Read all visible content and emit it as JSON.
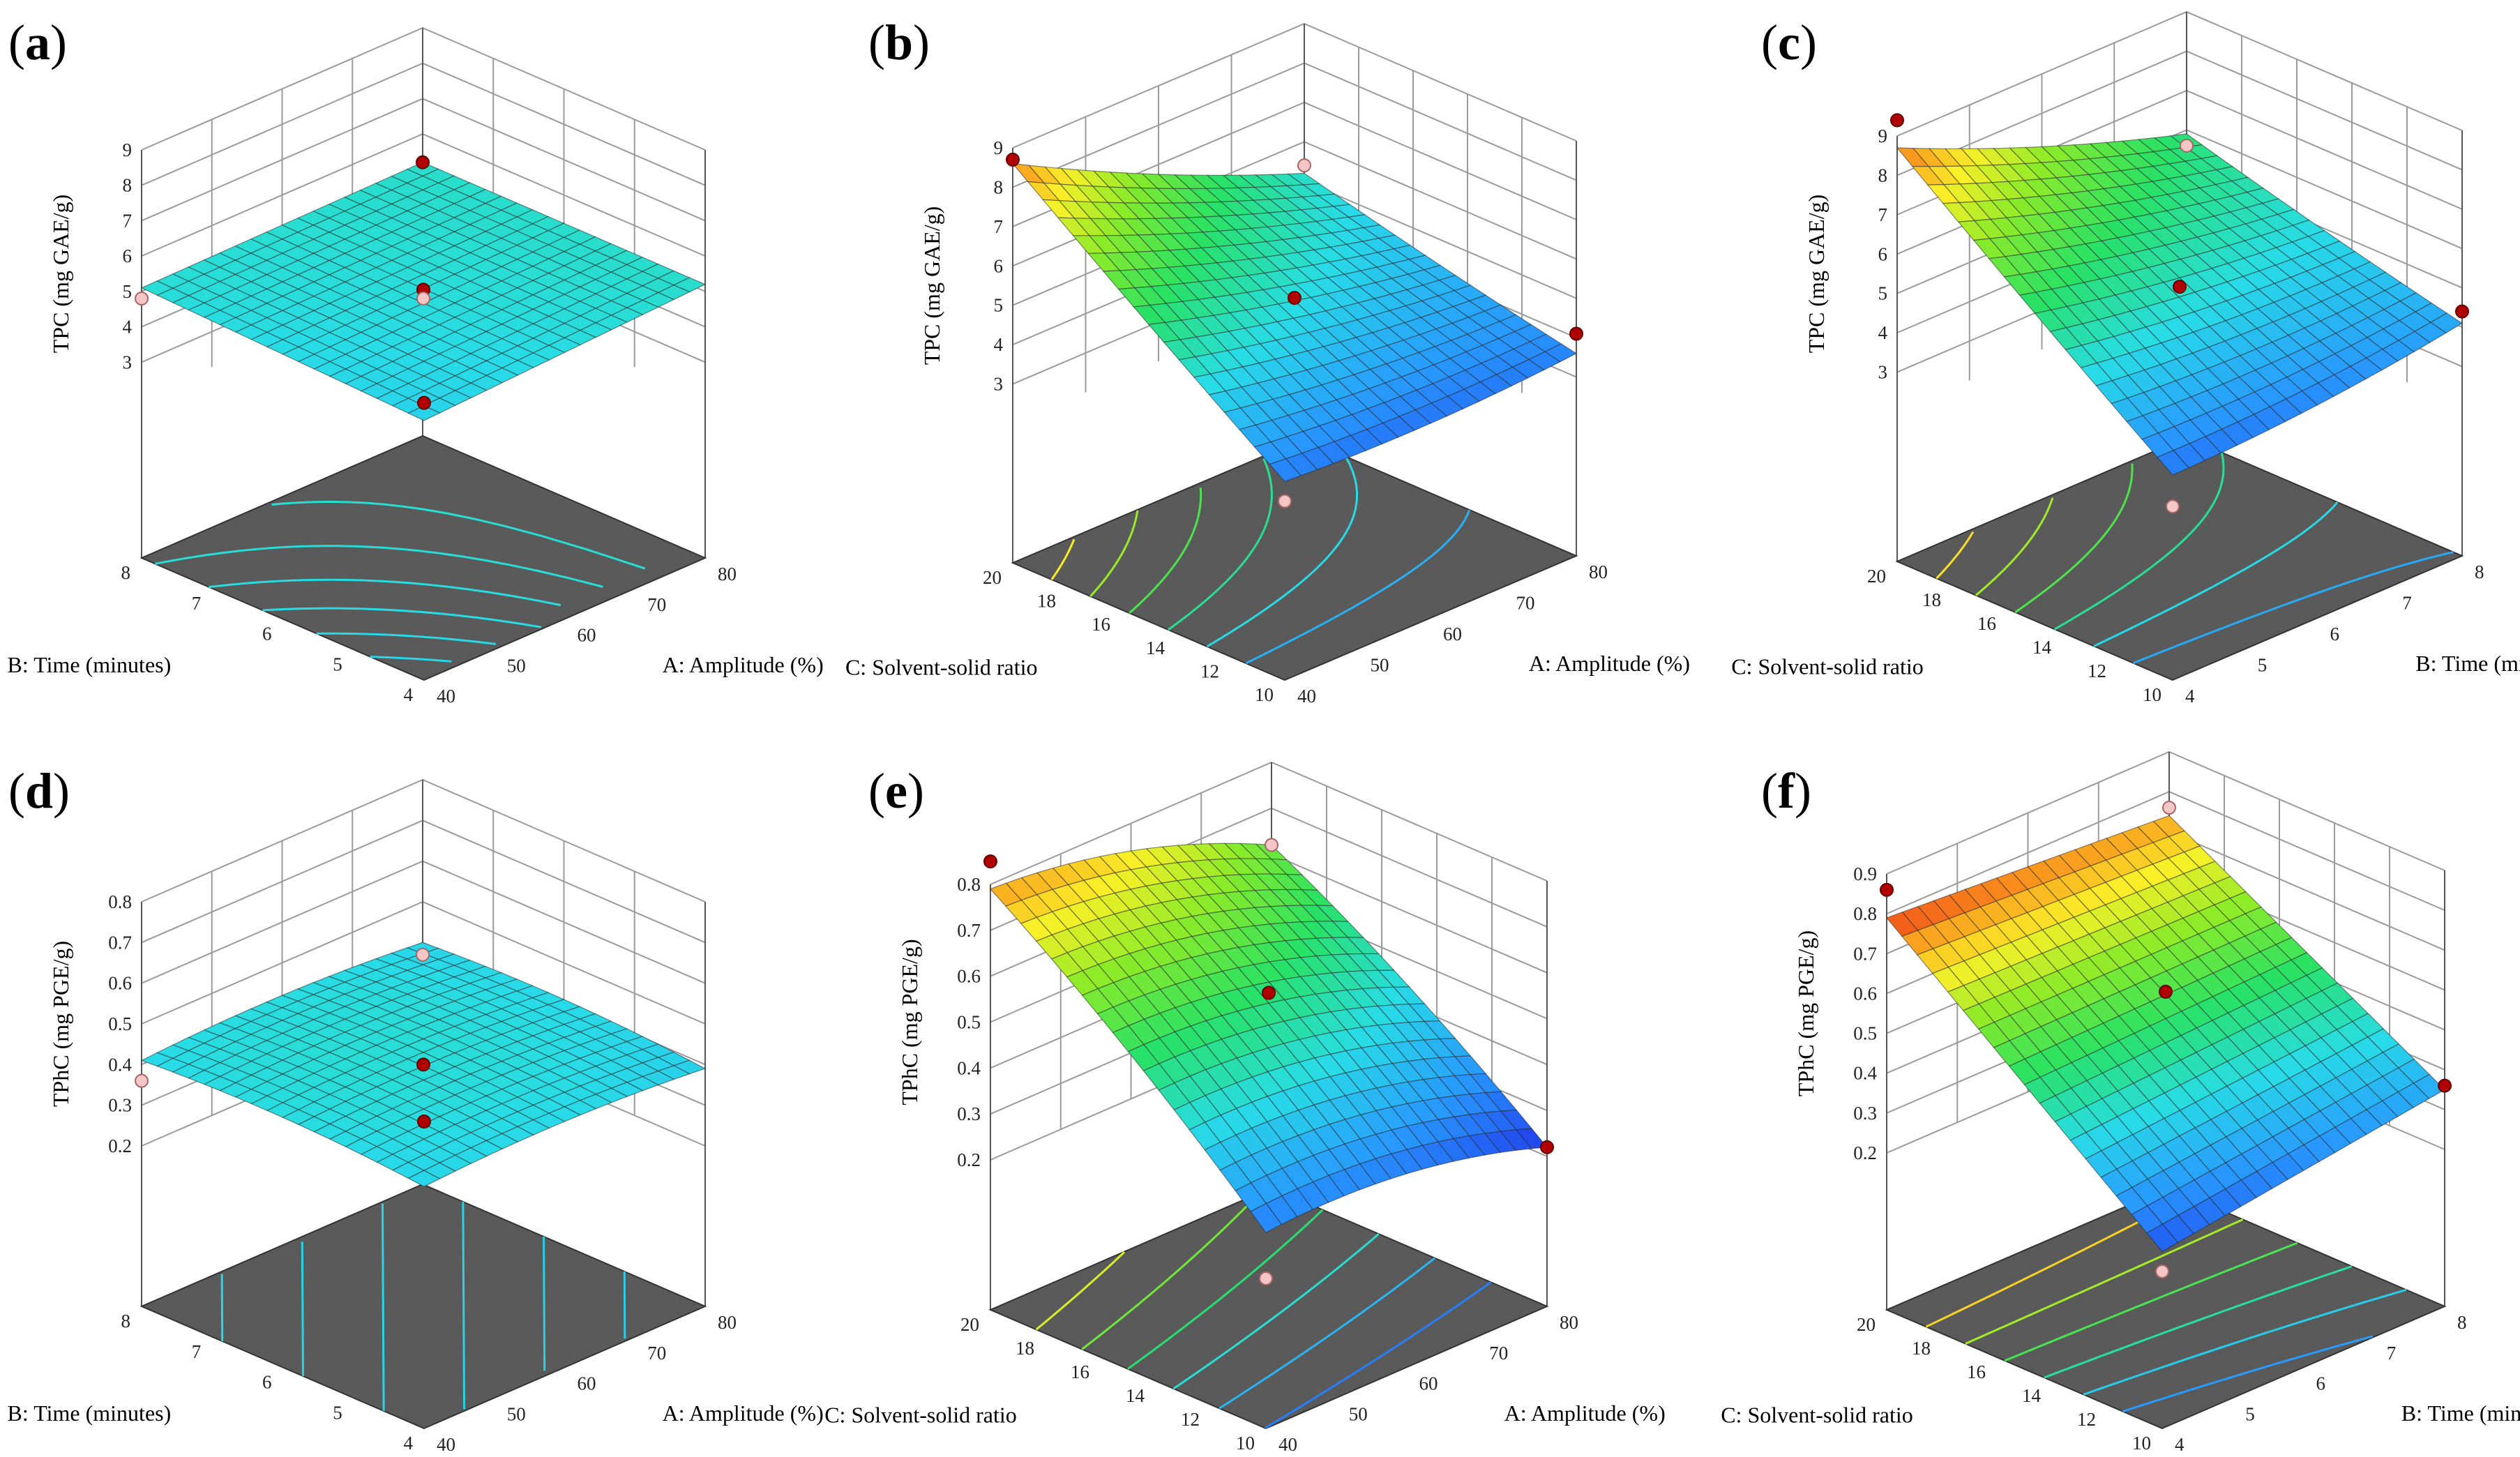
{
  "chart_data": [
    {
      "type": "surface",
      "label": "(a)",
      "zlabel": "TPC (mg GAE/g)",
      "zlim": [
        2,
        9
      ],
      "zticks": [
        3,
        4,
        5,
        6,
        7,
        8,
        9
      ],
      "xlabel": "A: Amplitude (%)",
      "xlim": [
        40,
        80
      ],
      "xticks": [
        40,
        50,
        60,
        70,
        80
      ],
      "ylabel": "B: Time (minutes)",
      "ylim": [
        4,
        8
      ],
      "yticks": [
        4,
        5,
        6,
        7,
        8
      ],
      "colormap": "parula-jet",
      "colorscale_z": [
        2.5,
        9
      ],
      "surface_coeffs": {
        "c": 5.0,
        "x": 0.18,
        "y": 0.1,
        "xx": 0.0,
        "yy": 0.0,
        "xy": -0.05
      },
      "corner_values": {
        "x_low_y_low": 4.8,
        "x_high_y_low": 5.2,
        "x_low_y_high": 5.1,
        "x_high_y_high": 5.2
      },
      "center_value": 5.0,
      "design_points": [
        {
          "x": 40,
          "y": 4,
          "z": 5.3,
          "above": true
        },
        {
          "x": 80,
          "y": 8,
          "z": 5.2,
          "above": true
        },
        {
          "x": 40,
          "y": 8,
          "z": 4.8,
          "above": false
        },
        {
          "x": 60,
          "y": 6,
          "z": 5.05,
          "above": true
        },
        {
          "x": 60,
          "y": 6,
          "z": 4.8,
          "above": false
        }
      ]
    },
    {
      "type": "surface",
      "label": "(b)",
      "zlabel": "TPC (mg GAE/g)",
      "zlim": [
        2,
        9
      ],
      "zticks": [
        3,
        4,
        5,
        6,
        7,
        8,
        9
      ],
      "xlabel": "A: Amplitude (%)",
      "xlim": [
        40,
        80
      ],
      "xticks": [
        40,
        50,
        60,
        70,
        80
      ],
      "ylabel": "C: Solvent-solid ratio",
      "ylim": [
        10,
        20
      ],
      "yticks": [
        10,
        12,
        14,
        16,
        18,
        20
      ],
      "colormap": "parula-jet",
      "colorscale_z": [
        2.5,
        9
      ],
      "surface_coeffs": {
        "c": 5.5,
        "x": -0.3,
        "y": 1.8,
        "xx": 0.3,
        "yy": 0.1,
        "xy": -0.1
      },
      "corner_values": {
        "x_low_y_low": 3.5,
        "x_high_y_low": 3.6,
        "x_low_y_high": 8.6,
        "x_high_y_high": 5.2
      },
      "center_value": 5.2,
      "design_points": [
        {
          "x": 40,
          "y": 20,
          "z": 8.7,
          "above": true
        },
        {
          "x": 80,
          "y": 10,
          "z": 4.1,
          "above": true
        },
        {
          "x": 80,
          "y": 20,
          "z": 5.4,
          "above": false
        },
        {
          "x": 40,
          "y": 10,
          "z": 3.0,
          "above": false
        },
        {
          "x": 60,
          "y": 15,
          "z": 5.1,
          "above": true
        }
      ]
    },
    {
      "type": "surface",
      "label": "(c)",
      "zlabel": "TPC (mg GAE/g)",
      "zlim": [
        2,
        9
      ],
      "zticks": [
        3,
        4,
        5,
        6,
        7,
        8,
        9
      ],
      "xlabel": "B: Time (minutes)",
      "xlim": [
        4,
        8
      ],
      "xticks": [
        4,
        5,
        6,
        7,
        8
      ],
      "ylabel": "C: Solvent-solid ratio",
      "ylim": [
        10,
        20
      ],
      "yticks": [
        10,
        12,
        14,
        16,
        18,
        20
      ],
      "colormap": "parula-jet",
      "colorscale_z": [
        2.5,
        9
      ],
      "surface_coeffs": {
        "c": 5.5,
        "x": -0.4,
        "y": 2.0,
        "xx": 0.3,
        "yy": 0.1,
        "xy": -0.1
      },
      "corner_values": {
        "x_low_y_low": 3.4,
        "x_high_y_low": 4.1,
        "x_low_y_high": 8.7,
        "x_high_y_high": 5.9
      },
      "center_value": 5.2,
      "design_points": [
        {
          "x": 4,
          "y": 20,
          "z": 9.4,
          "above": true
        },
        {
          "x": 8,
          "y": 10,
          "z": 4.4,
          "above": true
        },
        {
          "x": 8,
          "y": 20,
          "z": 5.6,
          "above": false
        },
        {
          "x": 4,
          "y": 10,
          "z": 2.6,
          "above": false
        },
        {
          "x": 6,
          "y": 15,
          "z": 5.1,
          "above": true
        }
      ]
    },
    {
      "type": "surface",
      "label": "(d)",
      "zlabel": "TPhC (mg PGE/g)",
      "zlim": [
        0.2,
        0.8
      ],
      "zticks": [
        0.2,
        0.3,
        0.4,
        0.5,
        0.6,
        0.7,
        0.8
      ],
      "xlabel": "A: Amplitude (%)",
      "xlim": [
        40,
        80
      ],
      "xticks": [
        40,
        50,
        60,
        70,
        80
      ],
      "ylabel": "B: Time (minutes)",
      "ylim": [
        4,
        8
      ],
      "yticks": [
        4,
        5,
        6,
        7,
        8
      ],
      "colormap": "parula-jet",
      "colorscale_z": [
        0.15,
        0.85
      ],
      "surface_coeffs": {
        "c": 0.44,
        "x": -0.005,
        "y": 0.015,
        "xx": -0.03,
        "yy": -0.03,
        "xy": 0.0
      },
      "corner_values": {
        "x_low_y_low": 0.4,
        "x_high_y_low": 0.39,
        "x_low_y_high": 0.41,
        "x_high_y_high": 0.4
      },
      "center_value": 0.44,
      "design_points": [
        {
          "x": 40,
          "y": 4,
          "z": 0.56,
          "above": true
        },
        {
          "x": 80,
          "y": 8,
          "z": 0.37,
          "above": false
        },
        {
          "x": 40,
          "y": 8,
          "z": 0.36,
          "above": false
        },
        {
          "x": 60,
          "y": 6,
          "z": 0.4,
          "above": true
        }
      ]
    },
    {
      "type": "surface",
      "label": "(e)",
      "zlabel": "TPhC (mg PGE/g)",
      "zlim": [
        0.2,
        0.8
      ],
      "zticks": [
        0.2,
        0.3,
        0.4,
        0.5,
        0.6,
        0.7,
        0.8
      ],
      "xlabel": "A: Amplitude (%)",
      "xlim": [
        40,
        80
      ],
      "xticks": [
        40,
        50,
        60,
        70,
        80
      ],
      "ylabel": "C: Solvent-solid ratio",
      "ylim": [
        10,
        20
      ],
      "yticks": [
        10,
        12,
        14,
        16,
        18,
        20
      ],
      "colormap": "parula-jet",
      "colorscale_z": [
        0.2,
        0.85
      ],
      "surface_coeffs": {
        "c": 0.48,
        "x": -0.03,
        "y": 0.18,
        "xx": -0.07,
        "yy": -0.04,
        "xy": 0.0
      },
      "corner_values": {
        "x_low_y_low": 0.3,
        "x_high_y_low": 0.22,
        "x_low_y_high": 0.79,
        "x_high_y_high": 0.62
      },
      "center_value": 0.48,
      "design_points": [
        {
          "x": 40,
          "y": 20,
          "z": 0.85,
          "above": true
        },
        {
          "x": 80,
          "y": 10,
          "z": 0.22,
          "above": true
        },
        {
          "x": 80,
          "y": 20,
          "z": 0.62,
          "above": false
        },
        {
          "x": 40,
          "y": 10,
          "z": 0.2,
          "above": false
        },
        {
          "x": 60,
          "y": 15,
          "z": 0.56,
          "above": true
        }
      ]
    },
    {
      "type": "surface",
      "label": "(f)",
      "zlabel": "TPhC (mg PGE/g)",
      "zlim": [
        0.2,
        0.9
      ],
      "zticks": [
        0.2,
        0.3,
        0.4,
        0.5,
        0.6,
        0.7,
        0.8,
        0.9
      ],
      "xlabel": "B: Time (minutes)",
      "xlim": [
        4,
        8
      ],
      "xticks": [
        4,
        5,
        6,
        7,
        8
      ],
      "ylabel": "C: Solvent-solid ratio",
      "ylim": [
        10,
        20
      ],
      "yticks": [
        10,
        12,
        14,
        16,
        18,
        20
      ],
      "colormap": "parula-jet",
      "colorscale_z": [
        0.2,
        0.8
      ],
      "surface_coeffs": {
        "c": 0.53,
        "x": -0.06,
        "y": 0.23,
        "xx": 0.0,
        "yy": 0.0,
        "xy": 0.03
      },
      "corner_values": {
        "x_low_y_low": 0.25,
        "x_high_y_low": 0.35,
        "x_low_y_high": 0.79,
        "x_high_y_high": 0.74
      },
      "center_value": 0.53,
      "design_points": [
        {
          "x": 4,
          "y": 20,
          "z": 0.86,
          "above": true
        },
        {
          "x": 8,
          "y": 10,
          "z": 0.36,
          "above": true
        },
        {
          "x": 8,
          "y": 20,
          "z": 0.76,
          "above": false
        },
        {
          "x": 4,
          "y": 10,
          "z": 0.2,
          "above": false
        },
        {
          "x": 6,
          "y": 15,
          "z": 0.6,
          "above": true
        }
      ]
    }
  ]
}
